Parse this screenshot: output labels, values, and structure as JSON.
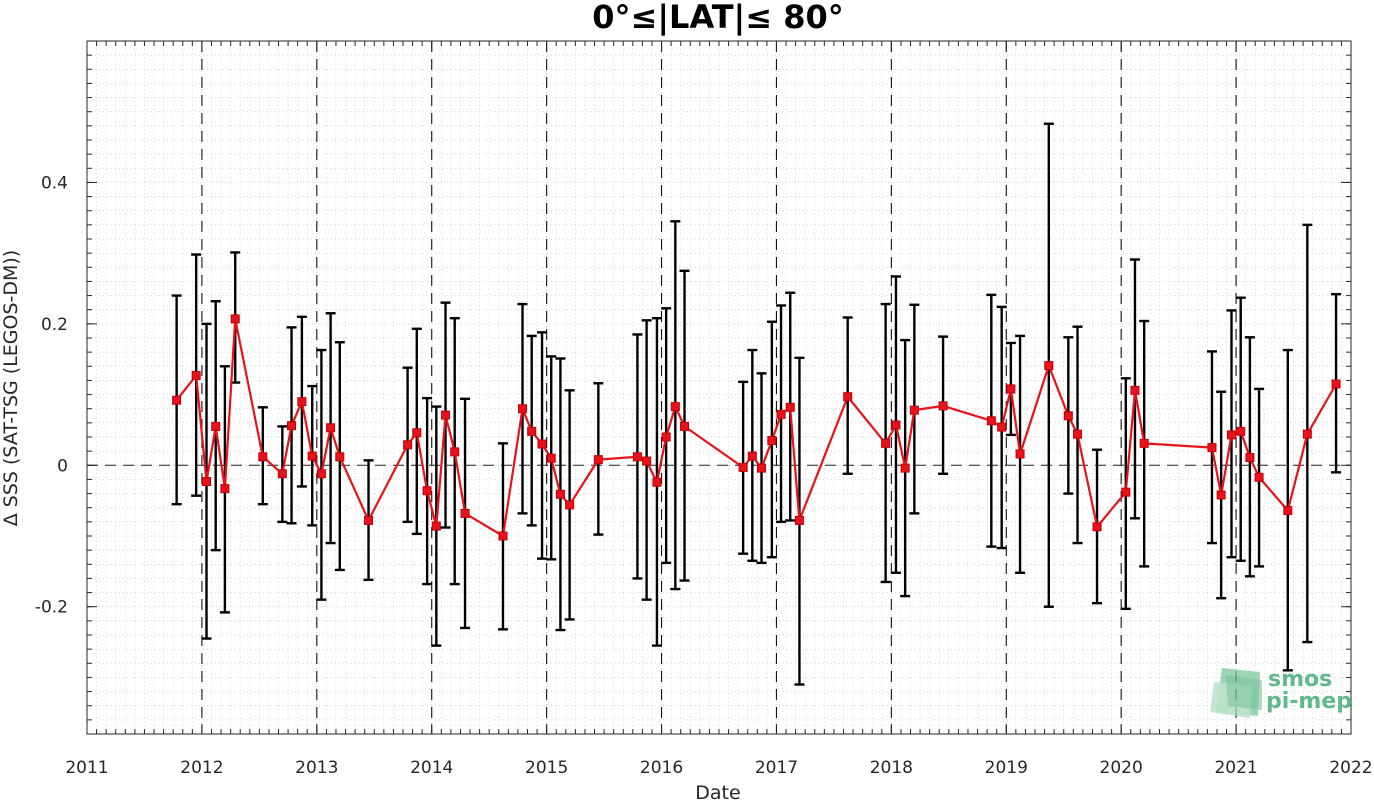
{
  "chart_data": {
    "type": "line",
    "title": "0°≤|LAT|≤ 80°",
    "xlabel": "Date",
    "ylabel": "Δ SSS (SAT-TSG (LEGOS-DM))",
    "xlim": [
      2011,
      2022
    ],
    "ylim": [
      -0.38,
      0.6
    ],
    "x_ticks": [
      2011,
      2012,
      2013,
      2014,
      2015,
      2016,
      2017,
      2018,
      2019,
      2020,
      2021,
      2022
    ],
    "x_tick_labels": [
      "2011",
      "2012",
      "2013",
      "2014",
      "2015",
      "2016",
      "2017",
      "2018",
      "2019",
      "2020",
      "2021",
      "2022"
    ],
    "y_ticks": [
      -0.2,
      0,
      0.2,
      0.4
    ],
    "y_tick_labels": [
      "-0.2",
      "0",
      "0.2",
      "0.4"
    ],
    "grid": true,
    "zero_line": "dashed",
    "year_lines": "dashed",
    "colors": {
      "series": "#e8131a",
      "errorbar": "#000000",
      "grid": "#c8c8c8"
    },
    "series": [
      {
        "marker": "square",
        "x": [
          2011.78,
          2011.95,
          2012.04,
          2012.12,
          2012.2,
          2012.29,
          2012.53,
          2012.7,
          2012.78,
          2012.87,
          2012.96,
          2013.04,
          2013.12,
          2013.2,
          2013.45,
          2013.79,
          2013.87,
          2013.96,
          2014.04,
          2014.12,
          2014.2,
          2014.29,
          2014.62,
          2014.79,
          2014.87,
          2014.96,
          2015.04,
          2015.12,
          2015.2,
          2015.45,
          2015.79,
          2015.87,
          2015.96,
          2016.04,
          2016.12,
          2016.2,
          2016.71,
          2016.79,
          2016.87,
          2016.96,
          2017.04,
          2017.12,
          2017.2,
          2017.62,
          2017.95,
          2018.04,
          2018.12,
          2018.2,
          2018.45,
          2018.87,
          2018.96,
          2019.04,
          2019.12,
          2019.37,
          2019.54,
          2019.62,
          2019.79,
          2020.04,
          2020.12,
          2020.2,
          2020.79,
          2020.87,
          2020.96,
          2021.04,
          2021.12,
          2021.2,
          2021.45,
          2021.62,
          2021.87
        ],
        "y": [
          0.092,
          0.127,
          -0.023,
          0.055,
          -0.033,
          0.207,
          0.012,
          -0.012,
          0.056,
          0.09,
          0.013,
          -0.012,
          0.053,
          0.012,
          -0.078,
          0.029,
          0.046,
          -0.036,
          -0.086,
          0.071,
          0.019,
          -0.068,
          -0.1,
          0.08,
          0.048,
          0.03,
          0.01,
          -0.041,
          -0.056,
          0.008,
          0.012,
          0.006,
          -0.024,
          0.04,
          0.083,
          0.055,
          -0.003,
          0.013,
          -0.004,
          0.035,
          0.072,
          0.082,
          -0.078,
          0.097,
          0.031,
          0.057,
          -0.004,
          0.078,
          0.084,
          0.063,
          0.054,
          0.108,
          0.016,
          0.141,
          0.07,
          0.044,
          -0.087,
          -0.038,
          0.106,
          0.031,
          0.025,
          -0.042,
          0.043,
          0.048,
          0.011,
          -0.017,
          -0.064,
          0.044,
          0.115
        ],
        "err_low": [
          -0.055,
          -0.043,
          -0.245,
          -0.12,
          -0.208,
          0.117,
          -0.055,
          -0.08,
          -0.082,
          -0.03,
          -0.085,
          -0.19,
          -0.11,
          -0.148,
          -0.162,
          -0.08,
          -0.097,
          -0.168,
          -0.255,
          -0.088,
          -0.168,
          -0.23,
          -0.232,
          -0.068,
          -0.085,
          -0.132,
          -0.133,
          -0.233,
          -0.218,
          -0.098,
          -0.16,
          -0.19,
          -0.255,
          -0.138,
          -0.175,
          -0.163,
          -0.125,
          -0.135,
          -0.138,
          -0.13,
          -0.08,
          -0.078,
          -0.31,
          -0.012,
          -0.165,
          -0.152,
          -0.185,
          -0.068,
          -0.012,
          -0.115,
          -0.117,
          0.043,
          -0.152,
          -0.2,
          -0.04,
          -0.11,
          -0.195,
          -0.203,
          -0.075,
          -0.143,
          -0.11,
          -0.188,
          -0.13,
          -0.135,
          -0.157,
          -0.143,
          -0.29,
          -0.25,
          -0.01
        ],
        "err_high": [
          0.24,
          0.298,
          0.2,
          0.232,
          0.14,
          0.301,
          0.082,
          0.055,
          0.195,
          0.21,
          0.112,
          0.163,
          0.215,
          0.174,
          0.007,
          0.138,
          0.193,
          0.095,
          0.083,
          0.23,
          0.208,
          0.094,
          0.031,
          0.228,
          0.183,
          0.188,
          0.154,
          0.151,
          0.106,
          0.116,
          0.185,
          0.205,
          0.208,
          0.222,
          0.345,
          0.275,
          0.118,
          0.163,
          0.13,
          0.203,
          0.226,
          0.244,
          0.152,
          0.209,
          0.228,
          0.267,
          0.177,
          0.227,
          0.182,
          0.241,
          0.224,
          0.173,
          0.183,
          0.483,
          0.181,
          0.196,
          0.022,
          0.123,
          0.291,
          0.204,
          0.161,
          0.104,
          0.219,
          0.237,
          0.181,
          0.108,
          0.163,
          0.34,
          0.242
        ]
      }
    ]
  },
  "logo": {
    "line1": "smos",
    "line2": "pi-mep",
    "color": "#5fb98a"
  }
}
